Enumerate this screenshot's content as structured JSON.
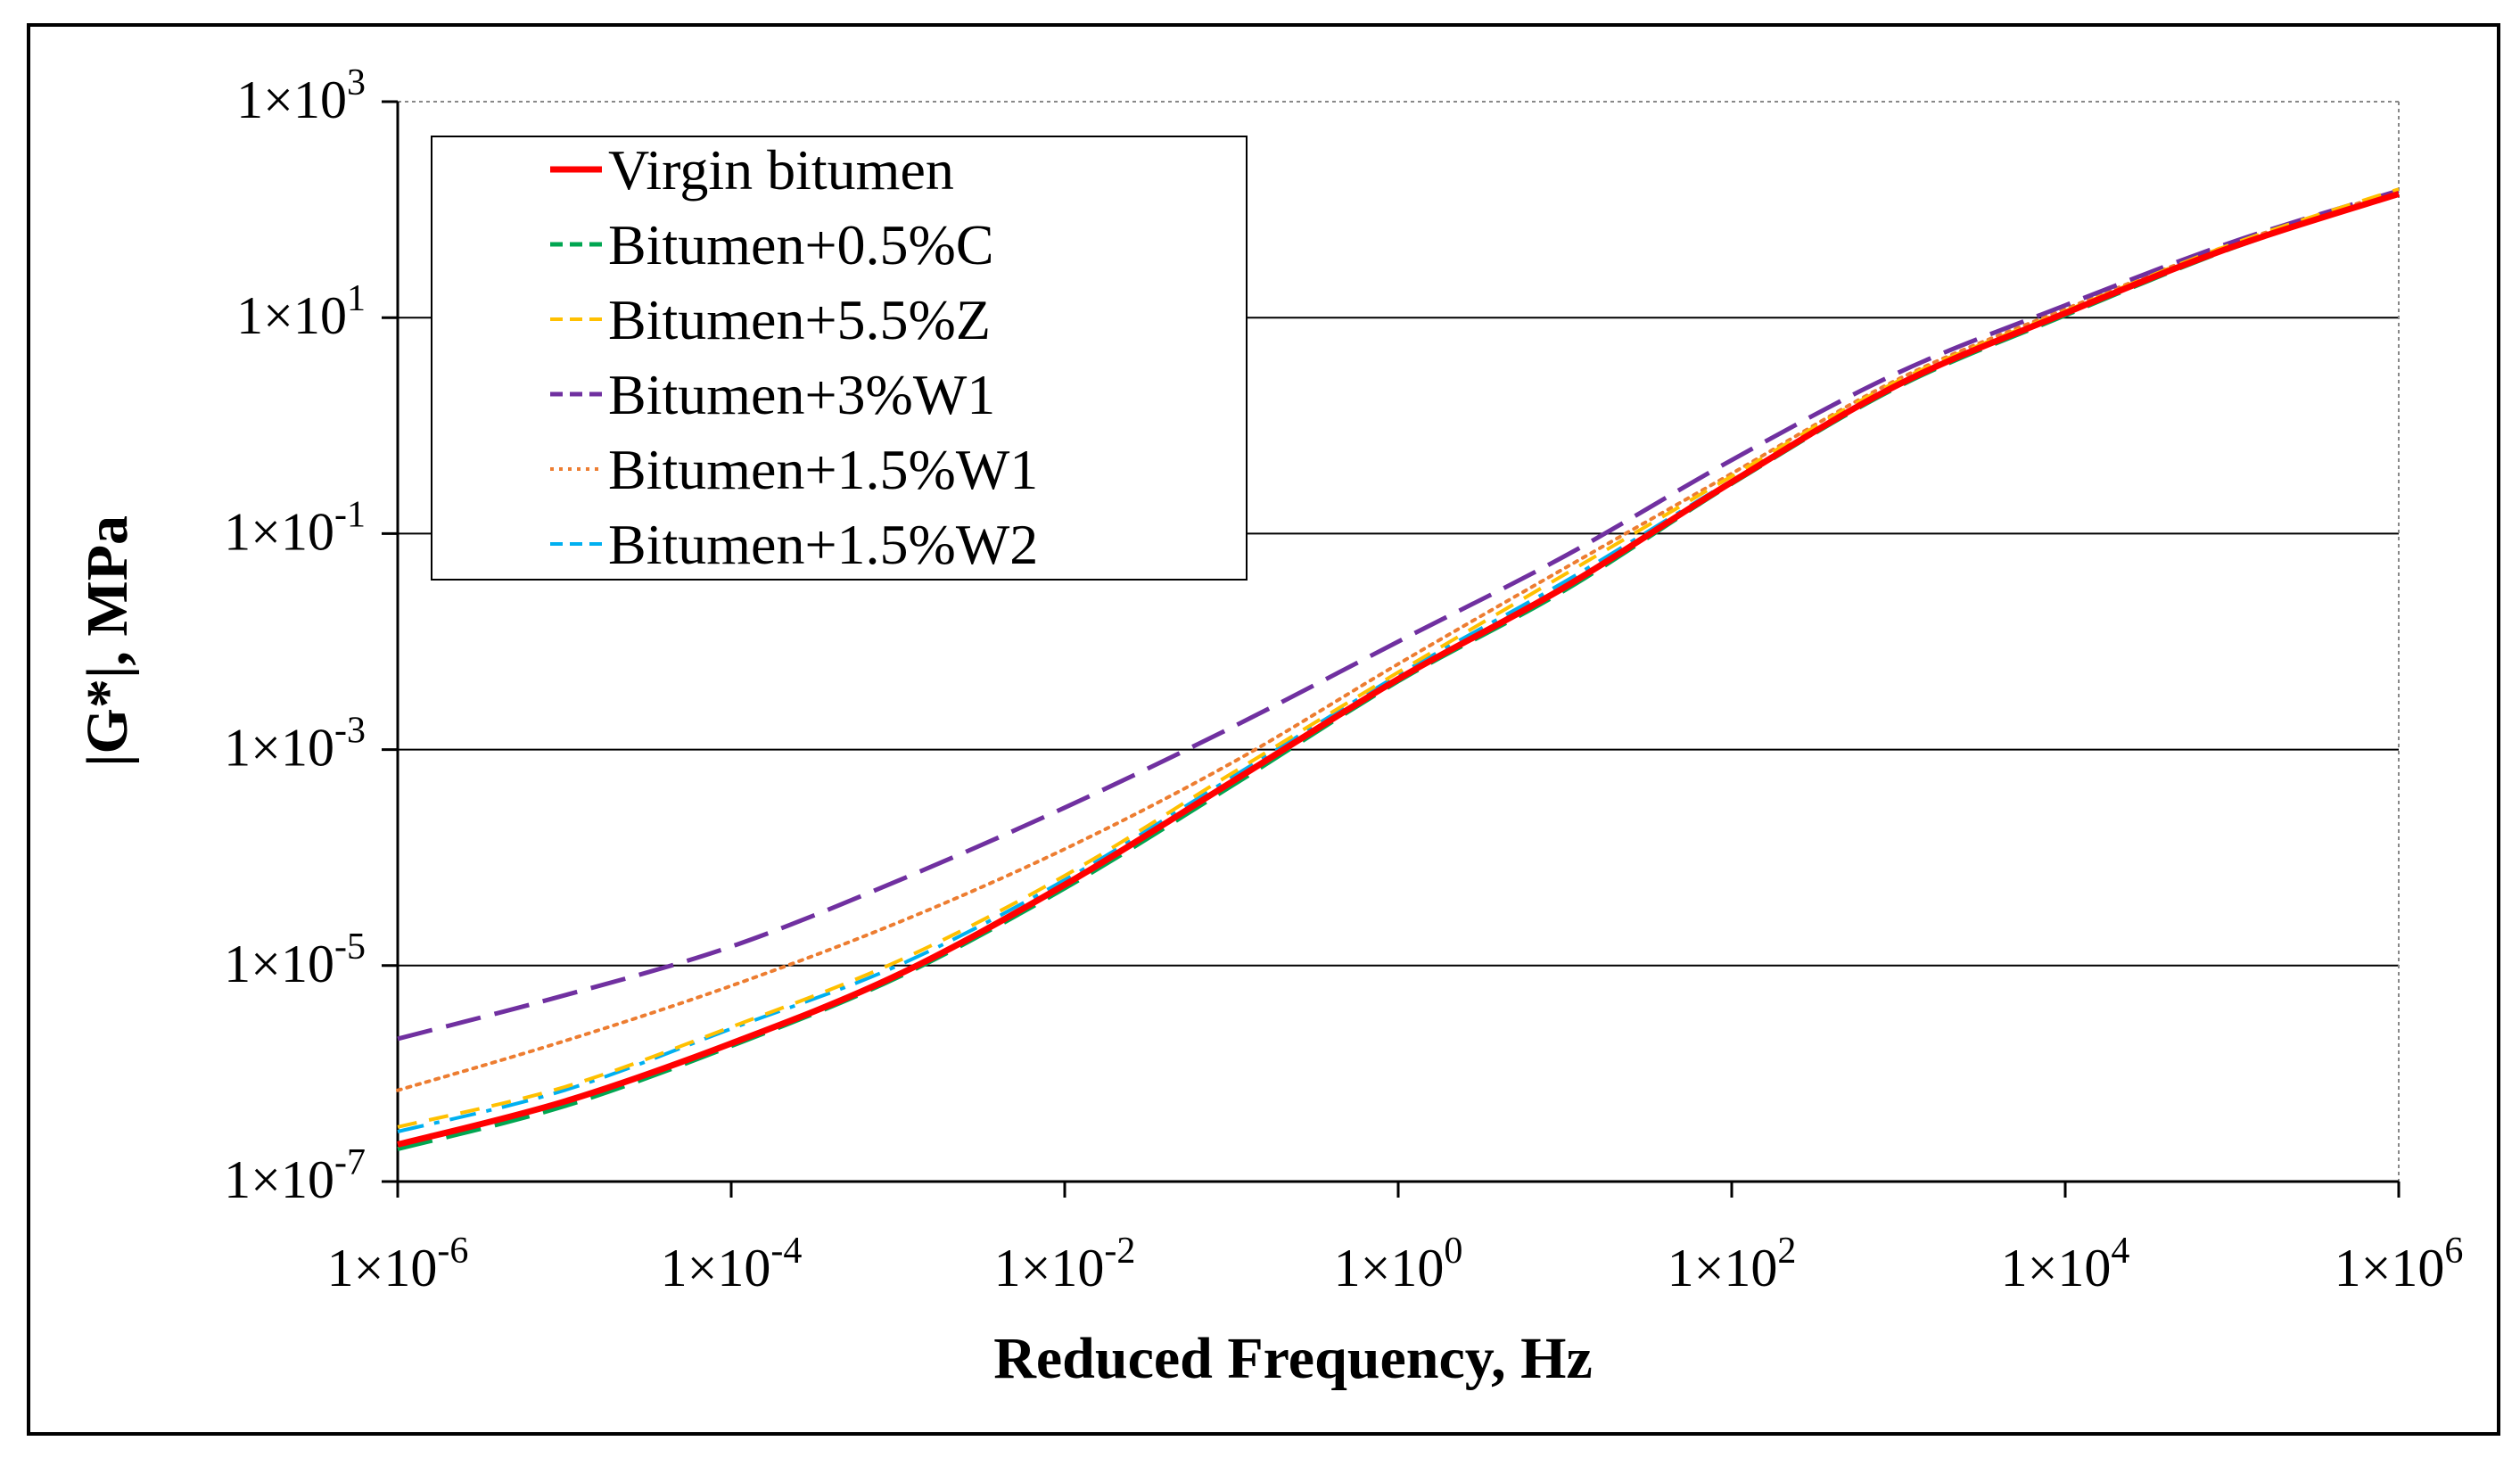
{
  "chart_data": {
    "type": "line",
    "title": "",
    "xlabel": "Reduced Frequency, Hz",
    "ylabel": "|G*|, MPa",
    "x_scale": "log",
    "y_scale": "log",
    "xlim": [
      1e-06,
      1000000.0
    ],
    "ylim": [
      1e-07,
      1000.0
    ],
    "x_ticks": [
      {
        "value": 1e-06,
        "base": "1×10",
        "exp": "-6"
      },
      {
        "value": 0.0001,
        "base": "1×10",
        "exp": "-4"
      },
      {
        "value": 0.01,
        "base": "1×10",
        "exp": "-2"
      },
      {
        "value": 1,
        "base": "1×10",
        "exp": "0"
      },
      {
        "value": 100.0,
        "base": "1×10",
        "exp": "2"
      },
      {
        "value": 10000.0,
        "base": "1×10",
        "exp": "4"
      },
      {
        "value": 1000000.0,
        "base": "1×10",
        "exp": "6"
      }
    ],
    "y_ticks": [
      {
        "value": 1000.0,
        "base": "1×10",
        "exp": "3"
      },
      {
        "value": 10.0,
        "base": "1×10",
        "exp": "1"
      },
      {
        "value": 0.1,
        "base": "1×10",
        "exp": "-1"
      },
      {
        "value": 0.001,
        "base": "1×10",
        "exp": "-3"
      },
      {
        "value": 1e-05,
        "base": "1×10",
        "exp": "-5"
      },
      {
        "value": 1e-07,
        "base": "1×10",
        "exp": "-7"
      }
    ],
    "grid": "horizontal",
    "legend_position": "top-left",
    "x": [
      1e-06,
      1e-05,
      0.0001,
      0.001,
      0.01,
      0.1,
      1,
      10,
      100,
      1000,
      10000.0,
      100000.0,
      1000000.0
    ],
    "series": [
      {
        "name": "Virgin bitumen",
        "color": "#ff0000",
        "style": "solid",
        "values": [
          2.2e-07,
          5.5e-07,
          1.9e-06,
          8.2e-06,
          5.6e-05,
          0.0005,
          0.0045,
          0.032,
          0.3,
          2.4,
          11,
          45,
          140
        ]
      },
      {
        "name": "Bitumen+0.5%C",
        "color": "#00a651",
        "style": "longdash",
        "values": [
          2e-07,
          5e-07,
          1.8e-06,
          7.8e-06,
          5.2e-05,
          0.00046,
          0.0043,
          0.03,
          0.29,
          2.3,
          10.5,
          44,
          140
        ]
      },
      {
        "name": "Bitumen+5.5%Z",
        "color": "#ffc000",
        "style": "dash",
        "values": [
          3.2e-07,
          7.5e-07,
          2.7e-06,
          1.1e-05,
          6.8e-05,
          0.0006,
          0.0052,
          0.042,
          0.34,
          2.6,
          11.5,
          48,
          155
        ]
      },
      {
        "name": "Bitumen+3%W1",
        "color": "#7030a0",
        "style": "longdash",
        "values": [
          2.1e-06,
          5.3e-06,
          1.5e-05,
          6.1e-05,
          0.00029,
          0.0016,
          0.01,
          0.062,
          0.48,
          3.1,
          13,
          50,
          150
        ]
      },
      {
        "name": "Bitumen+1.5%W1",
        "color": "#ed7d31",
        "style": "dot",
        "values": [
          7e-07,
          2e-06,
          6.5e-06,
          2.5e-05,
          0.00012,
          0.00075,
          0.0062,
          0.048,
          0.36,
          2.7,
          12,
          48,
          150
        ]
      },
      {
        "name": "Bitumen+1.5%W2",
        "color": "#00b0f0",
        "style": "dashdot",
        "values": [
          2.9e-07,
          7e-07,
          2.6e-06,
          1e-05,
          6.2e-05,
          0.00055,
          0.0049,
          0.036,
          0.31,
          2.4,
          11,
          44,
          138
        ]
      }
    ]
  }
}
